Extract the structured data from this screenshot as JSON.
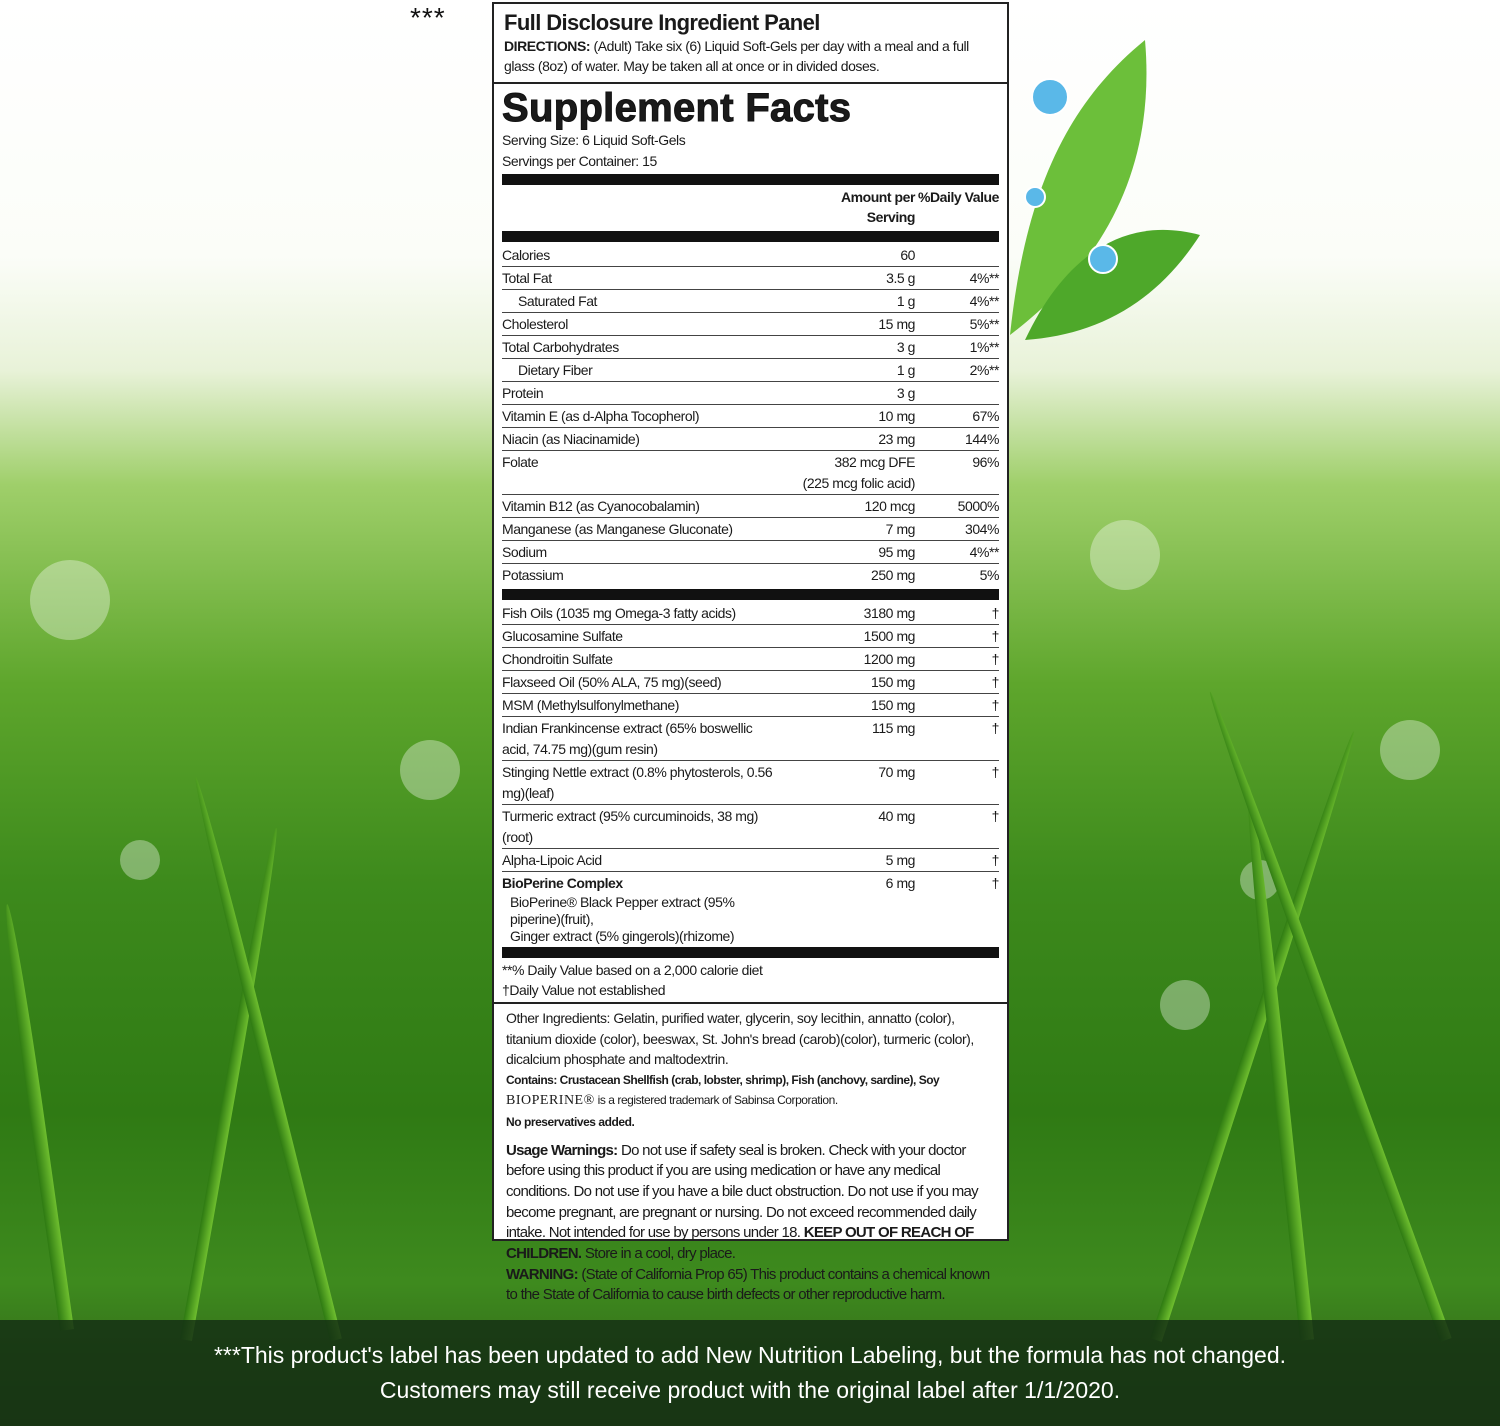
{
  "marker": "***",
  "panel": {
    "title": "Full Disclosure Ingredient Panel",
    "directions_label": "DIRECTIONS:",
    "directions_text": "(Adult) Take six (6) Liquid Soft-Gels per day with a meal and a full glass (8oz) of water. May be taken all at once or in divided doses."
  },
  "facts": {
    "heading": "Supplement Facts",
    "serving_size": "Serving Size:  6 Liquid Soft-Gels",
    "servings_per_container": "Servings per Container:  15",
    "col_amount": "Amount per Serving",
    "col_dv": "%Daily Value",
    "nutrients": [
      {
        "name": "Calories",
        "amount": "60",
        "dv": ""
      },
      {
        "name": "Total Fat",
        "amount": "3.5 g",
        "dv": "4%**"
      },
      {
        "name": "Saturated Fat",
        "amount": "1 g",
        "dv": "4%**",
        "indent": true
      },
      {
        "name": "Cholesterol",
        "amount": "15 mg",
        "dv": "5%**"
      },
      {
        "name": "Total Carbohydrates",
        "amount": "3 g",
        "dv": "1%**"
      },
      {
        "name": "Dietary Fiber",
        "amount": "1 g",
        "dv": "2%**",
        "indent": true
      },
      {
        "name": "Protein",
        "amount": "3 g",
        "dv": ""
      },
      {
        "name": "Vitamin E (as d-Alpha Tocopherol)",
        "amount": "10 mg",
        "dv": "67%"
      },
      {
        "name": "Niacin (as Niacinamide)",
        "amount": "23 mg",
        "dv": "144%"
      },
      {
        "name": "Folate",
        "amount": "382 mcg DFE",
        "amount2": "(225 mcg folic acid)",
        "dv": "96%"
      },
      {
        "name": "Vitamin B12 (as Cyanocobalamin)",
        "amount": "120 mcg",
        "dv": "5000%"
      },
      {
        "name": "Manganese (as Manganese Gluconate)",
        "amount": "7 mg",
        "dv": "304%"
      },
      {
        "name": "Sodium",
        "amount": "95 mg",
        "dv": "4%**"
      },
      {
        "name": "Potassium",
        "amount": "250 mg",
        "dv": "5%"
      }
    ],
    "others": [
      {
        "name": "Fish Oils (1035 mg Omega-3 fatty acids)",
        "amount": "3180 mg",
        "dv": "†"
      },
      {
        "name": "Glucosamine Sulfate",
        "amount": "1500 mg",
        "dv": "†"
      },
      {
        "name": "Chondroitin Sulfate",
        "amount": "1200 mg",
        "dv": "†"
      },
      {
        "name": "Flaxseed Oil (50% ALA, 75 mg)(seed)",
        "amount": "150 mg",
        "dv": "†"
      },
      {
        "name": "MSM (Methylsulfonylmethane)",
        "amount": "150 mg",
        "dv": "†"
      },
      {
        "name": "Indian Frankincense extract (65% boswellic acid, 74.75 mg)(gum resin)",
        "amount": "115 mg",
        "dv": "†"
      },
      {
        "name": "Stinging Nettle extract (0.8% phytosterols, 0.56 mg)(leaf)",
        "amount": "70 mg",
        "dv": "†"
      },
      {
        "name": "Turmeric extract (95% curcuminoids, 38 mg)(root)",
        "amount": "40 mg",
        "dv": "†"
      },
      {
        "name": "Alpha-Lipoic Acid",
        "amount": "5 mg",
        "dv": "†"
      },
      {
        "name": "BioPerine Complex",
        "sub1": "BioPerine® Black Pepper extract (95% piperine)(fruit),",
        "sub2": "Ginger extract (5% gingerols)(rhizome)",
        "amount": "6 mg",
        "dv": "†",
        "bold": true
      }
    ],
    "footnote1": "**% Daily Value based on a 2,000 calorie diet",
    "footnote2": "†Daily Value not established"
  },
  "other_ingredients": "Other Ingredients:  Gelatin, purified water, glycerin, soy lecithin, annatto (color), titanium dioxide (color), beeswax, St. John's bread (carob)(color), turmeric (color), dicalcium phosphate and maltodextrin.",
  "contains": "Contains:  Crustacean Shellfish (crab, lobster, shrimp), Fish (anchovy, sardine), Soy",
  "trademark_logo": "BIOPERINE®",
  "trademark_text": "is a registered trademark of Sabinsa Corporation.",
  "no_preservatives": "No preservatives added.",
  "warnings": {
    "usage_label": "Usage Warnings:",
    "usage_text": "Do not use if safety seal is broken.  Check with your doctor before using this product if you are using medication or have any medical conditions. Do not use if you have a bile duct obstruction.  Do not use if you may become pregnant, are pregnant or nursing.  Do not exceed recommended daily intake.  Not intended for use by persons under 18.",
    "keep_out": "KEEP OUT OF REACH OF CHILDREN.",
    "store": "Store in a cool, dry place.",
    "prop65_label": "WARNING:",
    "prop65_text": "(State of California Prop 65) This product contains a chemical known to the State of California to cause birth defects or other reproductive harm."
  },
  "banner": {
    "line1": "***This product's label has been updated to add New Nutrition Labeling, but the formula has not changed.",
    "line2": "Customers may still receive product with the original label after 1/1/2020."
  }
}
